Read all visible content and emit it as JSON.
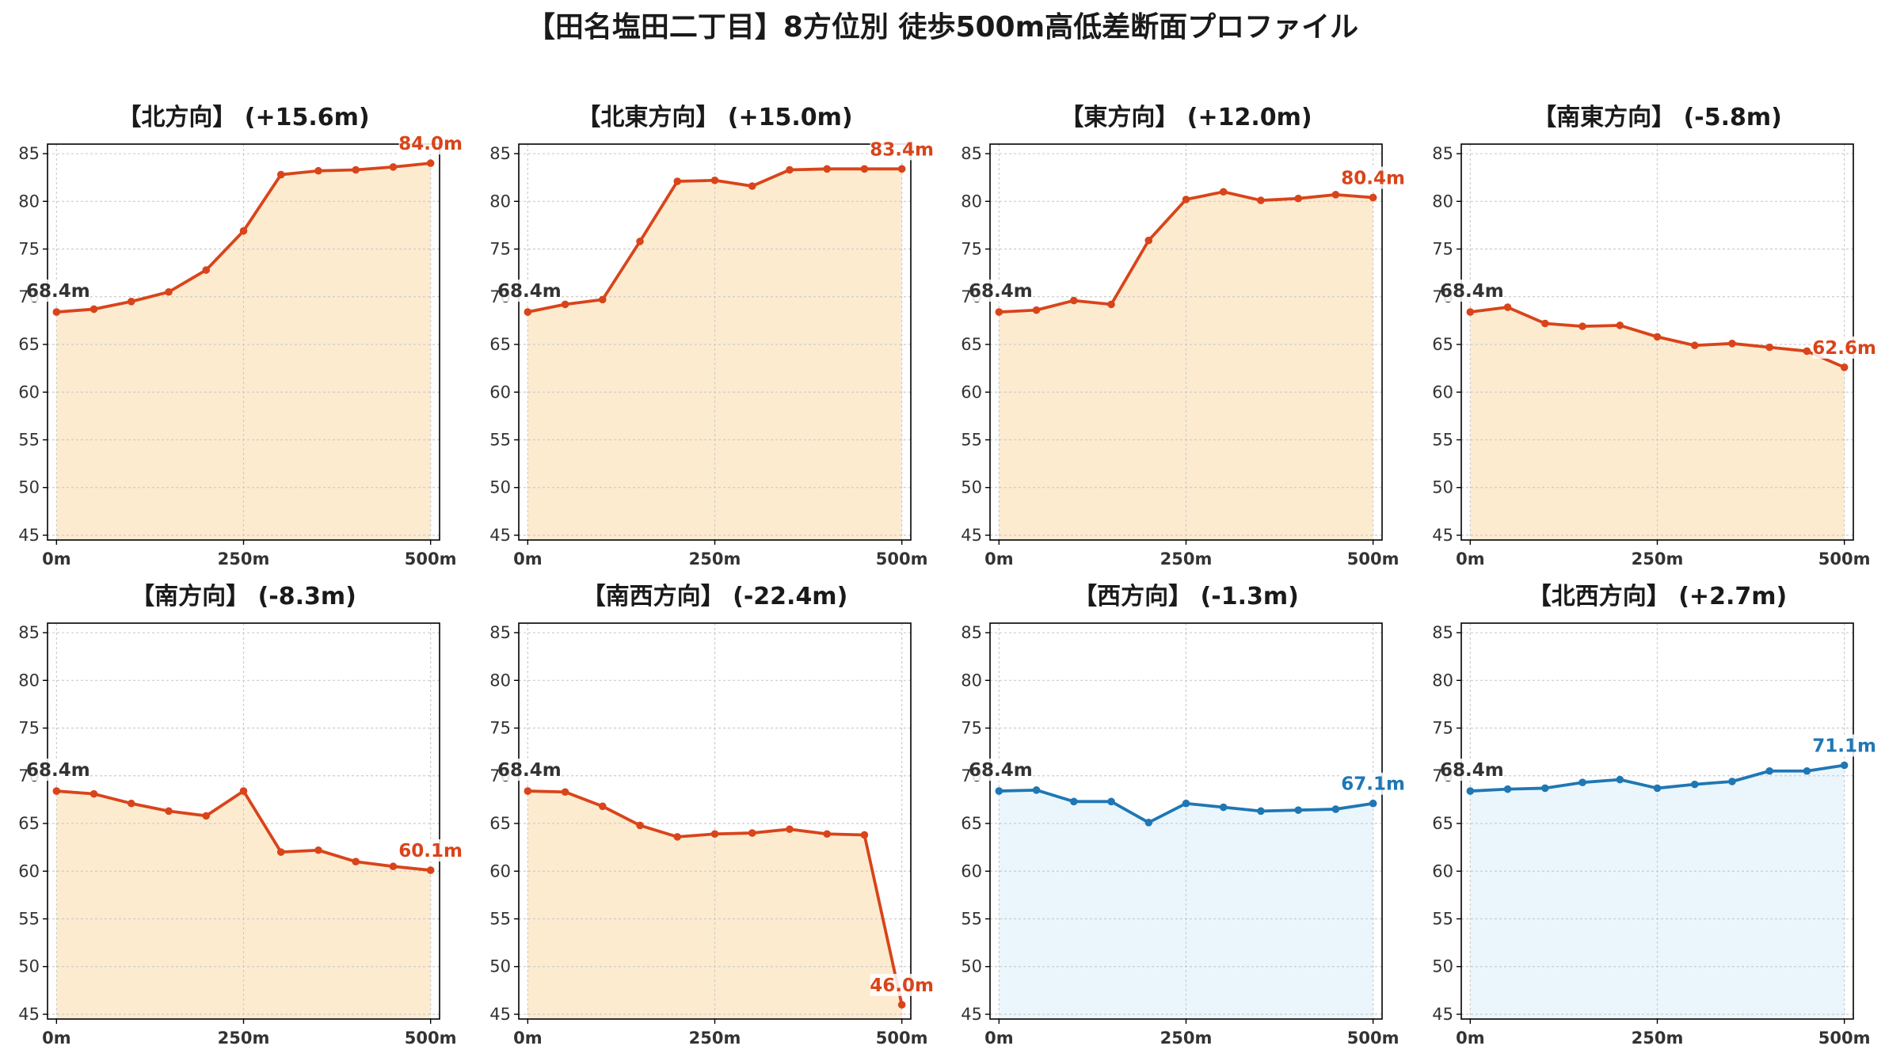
{
  "title": "【田名塩田二丁目】8方位別 徒歩500m高低差断面プロファイル",
  "colors": {
    "rise_line": "#d9441a",
    "rise_fill": "#fdebd0",
    "flat_line": "#1f77b4",
    "flat_fill": "#eaf6fc",
    "start_label": "#333333",
    "grid": "#cccccc",
    "axis": "#000000"
  },
  "chart_data": [
    {
      "type": "area",
      "title": "【北方向】 (+15.6m)",
      "x": [
        0,
        50,
        100,
        150,
        200,
        250,
        300,
        350,
        400,
        450,
        500
      ],
      "y": [
        68.4,
        68.7,
        69.5,
        70.5,
        72.8,
        76.9,
        82.8,
        83.2,
        83.3,
        83.6,
        84.0
      ],
      "x_tick_labels": [
        "0m",
        "250m",
        "500m"
      ],
      "y_ticks": [
        45,
        50,
        55,
        60,
        65,
        70,
        75,
        80,
        85
      ],
      "xlim": [
        -12,
        512
      ],
      "ylim": [
        44.5,
        86
      ],
      "start_label": "68.4m",
      "end_label": "84.0m",
      "color_scheme": "rise",
      "grid": true
    },
    {
      "type": "area",
      "title": "【北東方向】 (+15.0m)",
      "x": [
        0,
        50,
        100,
        150,
        200,
        250,
        300,
        350,
        400,
        450,
        500
      ],
      "y": [
        68.4,
        69.2,
        69.7,
        75.8,
        82.1,
        82.2,
        81.6,
        83.3,
        83.4,
        83.4,
        83.4
      ],
      "x_tick_labels": [
        "0m",
        "250m",
        "500m"
      ],
      "y_ticks": [
        45,
        50,
        55,
        60,
        65,
        70,
        75,
        80,
        85
      ],
      "xlim": [
        -12,
        512
      ],
      "ylim": [
        44.5,
        86
      ],
      "start_label": "68.4m",
      "end_label": "83.4m",
      "color_scheme": "rise",
      "grid": true
    },
    {
      "type": "area",
      "title": "【東方向】 (+12.0m)",
      "x": [
        0,
        50,
        100,
        150,
        200,
        250,
        300,
        350,
        400,
        450,
        500
      ],
      "y": [
        68.4,
        68.6,
        69.6,
        69.2,
        75.9,
        80.2,
        81.0,
        80.1,
        80.3,
        80.7,
        80.4
      ],
      "x_tick_labels": [
        "0m",
        "250m",
        "500m"
      ],
      "y_ticks": [
        45,
        50,
        55,
        60,
        65,
        70,
        75,
        80,
        85
      ],
      "xlim": [
        -12,
        512
      ],
      "ylim": [
        44.5,
        86
      ],
      "start_label": "68.4m",
      "end_label": "80.4m",
      "color_scheme": "rise",
      "grid": true
    },
    {
      "type": "area",
      "title": "【南東方向】 (-5.8m)",
      "x": [
        0,
        50,
        100,
        150,
        200,
        250,
        300,
        350,
        400,
        450,
        500
      ],
      "y": [
        68.4,
        68.9,
        67.2,
        66.9,
        67.0,
        65.8,
        64.9,
        65.1,
        64.7,
        64.3,
        62.6
      ],
      "x_tick_labels": [
        "0m",
        "250m",
        "500m"
      ],
      "y_ticks": [
        45,
        50,
        55,
        60,
        65,
        70,
        75,
        80,
        85
      ],
      "xlim": [
        -12,
        512
      ],
      "ylim": [
        44.5,
        86
      ],
      "start_label": "68.4m",
      "end_label": "62.6m",
      "color_scheme": "rise",
      "grid": true
    },
    {
      "type": "area",
      "title": "【南方向】 (-8.3m)",
      "x": [
        0,
        50,
        100,
        150,
        200,
        250,
        300,
        350,
        400,
        450,
        500
      ],
      "y": [
        68.4,
        68.1,
        67.1,
        66.3,
        65.8,
        68.4,
        62.0,
        62.2,
        61.0,
        60.5,
        60.1
      ],
      "x_tick_labels": [
        "0m",
        "250m",
        "500m"
      ],
      "y_ticks": [
        45,
        50,
        55,
        60,
        65,
        70,
        75,
        80,
        85
      ],
      "xlim": [
        -12,
        512
      ],
      "ylim": [
        44.5,
        86
      ],
      "start_label": "68.4m",
      "end_label": "60.1m",
      "color_scheme": "rise",
      "grid": true
    },
    {
      "type": "area",
      "title": "【南西方向】 (-22.4m)",
      "x": [
        0,
        50,
        100,
        150,
        200,
        250,
        300,
        350,
        400,
        450,
        500
      ],
      "y": [
        68.4,
        68.3,
        66.8,
        64.8,
        63.6,
        63.9,
        64.0,
        64.4,
        63.9,
        63.8,
        46.0
      ],
      "x_tick_labels": [
        "0m",
        "250m",
        "500m"
      ],
      "y_ticks": [
        45,
        50,
        55,
        60,
        65,
        70,
        75,
        80,
        85
      ],
      "xlim": [
        -12,
        512
      ],
      "ylim": [
        44.5,
        86
      ],
      "start_label": "68.4m",
      "end_label": "46.0m",
      "color_scheme": "rise",
      "grid": true
    },
    {
      "type": "area",
      "title": "【西方向】 (-1.3m)",
      "x": [
        0,
        50,
        100,
        150,
        200,
        250,
        300,
        350,
        400,
        450,
        500
      ],
      "y": [
        68.4,
        68.5,
        67.3,
        67.3,
        65.1,
        67.1,
        66.7,
        66.3,
        66.4,
        66.5,
        67.1
      ],
      "x_tick_labels": [
        "0m",
        "250m",
        "500m"
      ],
      "y_ticks": [
        45,
        50,
        55,
        60,
        65,
        70,
        75,
        80,
        85
      ],
      "xlim": [
        -12,
        512
      ],
      "ylim": [
        44.5,
        86
      ],
      "start_label": "68.4m",
      "end_label": "67.1m",
      "color_scheme": "flat",
      "grid": true
    },
    {
      "type": "area",
      "title": "【北西方向】 (+2.7m)",
      "x": [
        0,
        50,
        100,
        150,
        200,
        250,
        300,
        350,
        400,
        450,
        500
      ],
      "y": [
        68.4,
        68.6,
        68.7,
        69.3,
        69.6,
        68.7,
        69.1,
        69.4,
        70.5,
        70.5,
        71.1
      ],
      "x_tick_labels": [
        "0m",
        "250m",
        "500m"
      ],
      "y_ticks": [
        45,
        50,
        55,
        60,
        65,
        70,
        75,
        80,
        85
      ],
      "xlim": [
        -12,
        512
      ],
      "ylim": [
        44.5,
        86
      ],
      "start_label": "68.4m",
      "end_label": "71.1m",
      "color_scheme": "flat",
      "grid": true
    }
  ]
}
